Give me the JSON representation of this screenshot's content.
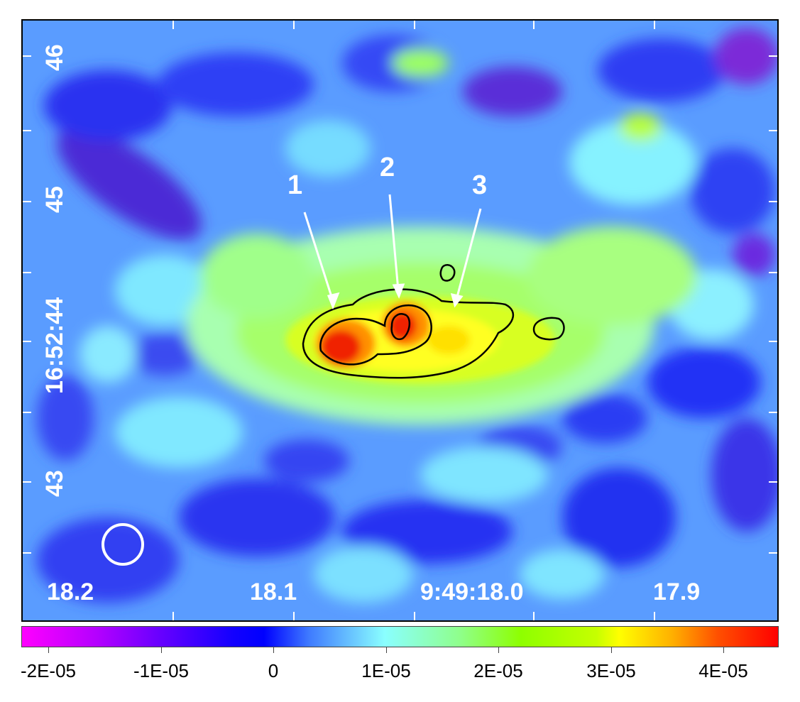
{
  "image": {
    "description_palette": [
      "#ff00ff",
      "#0000ff",
      "#8affff",
      "#8eff00",
      "#ffff00",
      "#ff0000"
    ],
    "contour_color": "#000000",
    "marker_color": "#ffffff"
  },
  "axes": {
    "dec_labels": [
      "46",
      "45",
      "16:52:44",
      "43"
    ],
    "ra_labels": [
      "18.2",
      "18.1",
      "9:49:18.0",
      "17.9"
    ]
  },
  "sources": [
    {
      "label": "1"
    },
    {
      "label": "2"
    },
    {
      "label": "3"
    }
  ],
  "colorbar": {
    "ticks": [
      "-2E-05",
      "-1E-05",
      "0",
      "1E-05",
      "2E-05",
      "3E-05",
      "4E-05"
    ]
  }
}
